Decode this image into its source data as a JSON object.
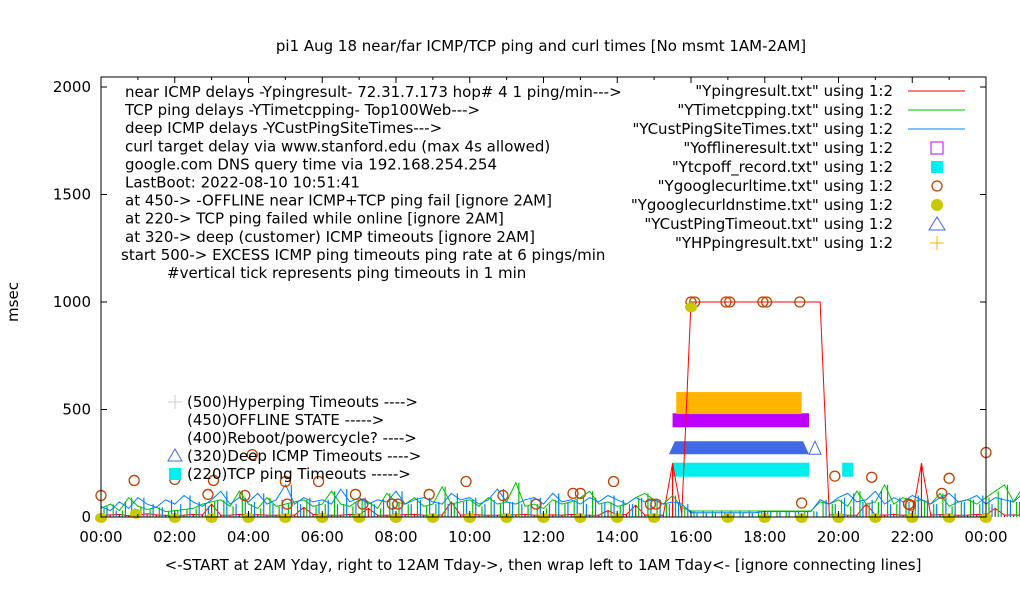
{
  "chart_data": {
    "type": "line",
    "title": "pi1 Aug 18  near/far ICMP/TCP ping and curl times [No msmt 1AM-2AM]",
    "xlabel": "<-START at 2AM Yday, right to 12AM Tday->, then wrap left to 1AM Tday<- [ignore connecting lines]",
    "ylabel": "msec",
    "xlim": [
      0,
      24
    ],
    "ylim": [
      0,
      2000
    ],
    "x_ticks": [
      "00:00",
      "02:00",
      "04:00",
      "06:00",
      "08:00",
      "10:00",
      "12:00",
      "14:00",
      "16:00",
      "18:00",
      "20:00",
      "22:00",
      "00:00"
    ],
    "y_ticks": [
      "0",
      "500",
      "1000",
      "1500",
      "2000"
    ],
    "notes": [
      "near ICMP delays -Ypingresult- 72.31.7.173 hop# 4 1 ping/min--->",
      "TCP ping delays -YTimetcpping- Top100Web--->",
      "deep ICMP delays -YCustPingSiteTimes--->",
      "curl target delay via www.stanford.edu (max 4s allowed)",
      "google.com DNS query time via 192.168.254.254",
      "LastBoot: 2022-08-10 10:51:41",
      "at 450-> -OFFLINE near ICMP+TCP ping fail [ignore 2AM]",
      "at 220-> TCP ping failed while online [ignore 2AM]",
      "at 320-> deep (customer) ICMP timeouts [ignore 2AM]",
      "start 500-> EXCESS ICMP ping timeouts ping rate at 6 pings/min",
      "#vertical tick represents ping timeouts in 1 min"
    ],
    "marker_key": [
      {
        "label": "(500)Hyperping Timeouts ---->",
        "marker": "plus",
        "color": "#ffb400"
      },
      {
        "label": "(450)OFFLINE STATE ----->",
        "marker": "none",
        "color": "#000000"
      },
      {
        "label": "(400)Reboot/powercycle? ---->",
        "marker": "none",
        "color": "#000000"
      },
      {
        "label": "(320)Deep ICMP Timeouts ---->",
        "marker": "triangle",
        "color": "#4169e1"
      },
      {
        "label": "(220)TCP ping Timeouts ----->",
        "marker": "square-filled",
        "color": "#00eeee"
      }
    ],
    "legend_position": "top-right",
    "legend": [
      {
        "label": "\"Ypingresult.txt\" using 1:2",
        "style": "line",
        "color": "#ff0000"
      },
      {
        "label": "\"YTimetcpping.txt\" using 1:2",
        "style": "line",
        "color": "#00c000"
      },
      {
        "label": "\"YCustPingSiteTimes.txt\" using 1:2",
        "style": "line",
        "color": "#0080ff"
      },
      {
        "label": "\"Yofflineresult.txt\" using 1:2",
        "style": "square-open",
        "color": "#c000ff"
      },
      {
        "label": "\"Ytcpoff_record.txt\" using 1:2",
        "style": "square-filled",
        "color": "#00eeee"
      },
      {
        "label": "\"Ygooglecurltime.txt\" using 1:2",
        "style": "circle-open",
        "color": "#c04000"
      },
      {
        "label": "\"Ygooglecurldnstime.txt\" using 1:2",
        "style": "circle-filled",
        "color": "#c8c800"
      },
      {
        "label": "\"YCustPingTimeout.txt\" using 1:2",
        "style": "triangle-open",
        "color": "#4169e1"
      },
      {
        "label": "\"YHPpingresult.txt\" using 1:2",
        "style": "plus",
        "color": "#ffb400"
      }
    ],
    "series": [
      {
        "name": "Ypingresult",
        "x_step_hours": 0.25,
        "values": [
          8,
          10,
          12,
          6,
          9,
          15,
          10,
          8,
          7,
          9,
          12,
          10,
          60,
          8,
          9,
          12,
          10,
          11,
          9,
          8,
          10,
          9,
          45,
          12,
          10,
          8,
          9,
          12,
          10,
          40,
          9,
          8,
          10,
          11,
          12,
          9,
          8,
          10,
          70,
          9,
          12,
          10,
          8,
          9,
          11,
          10,
          12,
          9,
          8,
          10,
          9,
          12,
          10,
          8,
          9,
          30,
          10,
          12,
          55,
          9,
          10,
          8,
          250,
          12,
          1000,
          1000,
          1000,
          1000,
          1000,
          1000,
          1000,
          1000,
          1000,
          1000,
          1000,
          1000,
          1000,
          1000,
          1000,
          10,
          12,
          9,
          8,
          60,
          10,
          9,
          12,
          8,
          10,
          250,
          9,
          11,
          10,
          8,
          9,
          12,
          10,
          40,
          9,
          10,
          8
        ]
      },
      {
        "name": "YTimetcpping",
        "x_step_hours": 0.25,
        "values": [
          40,
          60,
          30,
          90,
          50,
          35,
          45,
          25,
          30,
          35,
          40,
          60,
          70,
          80,
          50,
          120,
          60,
          40,
          90,
          50,
          60,
          70,
          80,
          50,
          60,
          120,
          60,
          50,
          80,
          70,
          40,
          110,
          70,
          60,
          90,
          50,
          60,
          140,
          60,
          70,
          80,
          50,
          90,
          60,
          70,
          160,
          50,
          60,
          40,
          80,
          60,
          70,
          90,
          120,
          60,
          70,
          50,
          60,
          90,
          110,
          80,
          60,
          100,
          45,
          28,
          28,
          28,
          28,
          28,
          28,
          28,
          28,
          28,
          28,
          28,
          28,
          28,
          28,
          70,
          60,
          80,
          50,
          120,
          60,
          70,
          150,
          60,
          90,
          70,
          80,
          60,
          110,
          50,
          70,
          80,
          60,
          90,
          120,
          150,
          70,
          140
        ]
      },
      {
        "name": "YCustPingSiteTimes",
        "x_step_hours": 0.25,
        "values": [
          50,
          30,
          70,
          40,
          90,
          60,
          45,
          80,
          60,
          100,
          70,
          50,
          80,
          120,
          60,
          90,
          70,
          110,
          60,
          80,
          150,
          60,
          90,
          70,
          80,
          60,
          130,
          70,
          90,
          60,
          80,
          70,
          120,
          60,
          80,
          90,
          70,
          60,
          110,
          80,
          90,
          60,
          80,
          130,
          70,
          60,
          80,
          90,
          60,
          110,
          70,
          80,
          60,
          90,
          70,
          100,
          80,
          60,
          90,
          70,
          80,
          60,
          70,
          60,
          20,
          20,
          20,
          20,
          20,
          20,
          20,
          20,
          25,
          25,
          25,
          25,
          25,
          25,
          80,
          60,
          90,
          110,
          70,
          80,
          120,
          60,
          90,
          70,
          100,
          80,
          60,
          90,
          110,
          70,
          80,
          100,
          60,
          90,
          80,
          70,
          110
        ]
      }
    ],
    "bands": [
      {
        "name": "Yofflineresult",
        "from": 15.5,
        "to": 19.2,
        "value": 450
      },
      {
        "name": "Ytcpoff_record",
        "from": 15.5,
        "to": 19.2,
        "value": 220
      },
      {
        "name": "Ytcpoff_record",
        "from": 20.1,
        "to": 20.4,
        "value": 220
      },
      {
        "name": "YCustPingTimeout",
        "from": 15.4,
        "to": 19.2,
        "value": 320
      },
      {
        "name": "YHPpingresult",
        "from": 15.6,
        "to": 19.0,
        "value": 530
      }
    ],
    "curl_points": [
      [
        0,
        100
      ],
      [
        0.9,
        170
      ],
      [
        2.0,
        175
      ],
      [
        2.9,
        105
      ],
      [
        3.05,
        170
      ],
      [
        3.9,
        100
      ],
      [
        4.1,
        290
      ],
      [
        5.0,
        165
      ],
      [
        5.05,
        60
      ],
      [
        5.9,
        165
      ],
      [
        6.9,
        105
      ],
      [
        7.1,
        60
      ],
      [
        7.9,
        60
      ],
      [
        8.05,
        60
      ],
      [
        8.9,
        105
      ],
      [
        9.9,
        165
      ],
      [
        10.9,
        100
      ],
      [
        11.8,
        60
      ],
      [
        12.8,
        110
      ],
      [
        13.0,
        110
      ],
      [
        13.9,
        165
      ],
      [
        14.9,
        60
      ],
      [
        15.05,
        60
      ],
      [
        16.0,
        1000
      ],
      [
        16.1,
        1000
      ],
      [
        16.95,
        1000
      ],
      [
        17.05,
        1000
      ],
      [
        17.95,
        1000
      ],
      [
        18.05,
        1000
      ],
      [
        18.95,
        1000
      ],
      [
        19.0,
        65
      ],
      [
        19.9,
        190
      ],
      [
        20.9,
        185
      ],
      [
        21.9,
        60
      ],
      [
        21.95,
        55
      ],
      [
        22.8,
        110
      ],
      [
        23.0,
        180
      ],
      [
        24.0,
        300
      ]
    ],
    "dns_points": [
      [
        0,
        0
      ],
      [
        0.95,
        20
      ],
      [
        2.0,
        0
      ],
      [
        3.0,
        0
      ],
      [
        4.0,
        0
      ],
      [
        5.0,
        0
      ],
      [
        6.0,
        0
      ],
      [
        7.0,
        0
      ],
      [
        8.0,
        0
      ],
      [
        9.0,
        0
      ],
      [
        10.0,
        0
      ],
      [
        11.0,
        0
      ],
      [
        12.0,
        0
      ],
      [
        13.0,
        0
      ],
      [
        14.0,
        0
      ],
      [
        15.0,
        0
      ],
      [
        16.0,
        980
      ],
      [
        17.0,
        0
      ],
      [
        18.0,
        0
      ],
      [
        19.0,
        0
      ],
      [
        20.0,
        0
      ],
      [
        21.0,
        0
      ],
      [
        22.0,
        0
      ],
      [
        23.0,
        0
      ],
      [
        24.0,
        0
      ]
    ]
  }
}
